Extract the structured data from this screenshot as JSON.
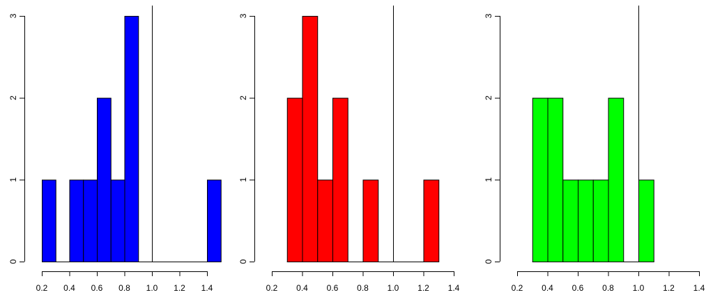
{
  "chart_data": [
    {
      "type": "bar",
      "title": "",
      "xlabel": "",
      "ylabel": "",
      "color": "#0000ff",
      "bins": [
        {
          "from": 0.2,
          "to": 0.3,
          "count": 1
        },
        {
          "from": 0.3,
          "to": 0.4,
          "count": 0
        },
        {
          "from": 0.4,
          "to": 0.5,
          "count": 1
        },
        {
          "from": 0.5,
          "to": 0.6,
          "count": 1
        },
        {
          "from": 0.6,
          "to": 0.7,
          "count": 2
        },
        {
          "from": 0.7,
          "to": 0.8,
          "count": 1
        },
        {
          "from": 0.8,
          "to": 0.9,
          "count": 3
        },
        {
          "from": 0.9,
          "to": 1.0,
          "count": 0
        },
        {
          "from": 1.0,
          "to": 1.1,
          "count": 0
        },
        {
          "from": 1.1,
          "to": 1.2,
          "count": 0
        },
        {
          "from": 1.2,
          "to": 1.3,
          "count": 0
        },
        {
          "from": 1.3,
          "to": 1.4,
          "count": 0
        },
        {
          "from": 1.4,
          "to": 1.5,
          "count": 1
        }
      ],
      "xlim": [
        0.2,
        1.5
      ],
      "ylim": [
        0,
        3
      ],
      "x_ticks": [
        "0.2",
        "0.4",
        "0.6",
        "0.8",
        "1.0",
        "1.2",
        "1.4"
      ],
      "y_ticks": [
        "0",
        "1",
        "2",
        "3"
      ],
      "reference_line_x": 1.0
    },
    {
      "type": "bar",
      "title": "",
      "xlabel": "",
      "ylabel": "",
      "color": "#ff0000",
      "bins": [
        {
          "from": 0.3,
          "to": 0.4,
          "count": 2
        },
        {
          "from": 0.4,
          "to": 0.5,
          "count": 3
        },
        {
          "from": 0.5,
          "to": 0.6,
          "count": 1
        },
        {
          "from": 0.6,
          "to": 0.7,
          "count": 2
        },
        {
          "from": 0.7,
          "to": 0.8,
          "count": 0
        },
        {
          "from": 0.8,
          "to": 0.9,
          "count": 1
        },
        {
          "from": 0.9,
          "to": 1.0,
          "count": 0
        },
        {
          "from": 1.0,
          "to": 1.1,
          "count": 0
        },
        {
          "from": 1.1,
          "to": 1.2,
          "count": 0
        },
        {
          "from": 1.2,
          "to": 1.3,
          "count": 1
        }
      ],
      "xlim": [
        0.3,
        1.3
      ],
      "ylim": [
        0,
        3
      ],
      "x_ticks": [
        "0.2",
        "0.4",
        "0.6",
        "0.8",
        "1.0",
        "1.2",
        "1.4"
      ],
      "y_ticks": [
        "0",
        "1",
        "2",
        "3"
      ],
      "reference_line_x": 1.0
    },
    {
      "type": "bar",
      "title": "",
      "xlabel": "",
      "ylabel": "",
      "color": "#00ff00",
      "bins": [
        {
          "from": 0.3,
          "to": 0.4,
          "count": 2
        },
        {
          "from": 0.4,
          "to": 0.5,
          "count": 2
        },
        {
          "from": 0.5,
          "to": 0.6,
          "count": 1
        },
        {
          "from": 0.6,
          "to": 0.7,
          "count": 1
        },
        {
          "from": 0.7,
          "to": 0.8,
          "count": 1
        },
        {
          "from": 0.8,
          "to": 0.9,
          "count": 2
        },
        {
          "from": 0.9,
          "to": 1.0,
          "count": 0
        },
        {
          "from": 1.0,
          "to": 1.1,
          "count": 1
        }
      ],
      "xlim": [
        0.3,
        1.1
      ],
      "ylim": [
        0,
        3
      ],
      "x_ticks": [
        "0.2",
        "0.4",
        "0.6",
        "0.8",
        "1.0",
        "1.2",
        "1.4"
      ],
      "y_ticks": [
        "0",
        "1",
        "2",
        "3"
      ],
      "reference_line_x": 1.0
    }
  ]
}
